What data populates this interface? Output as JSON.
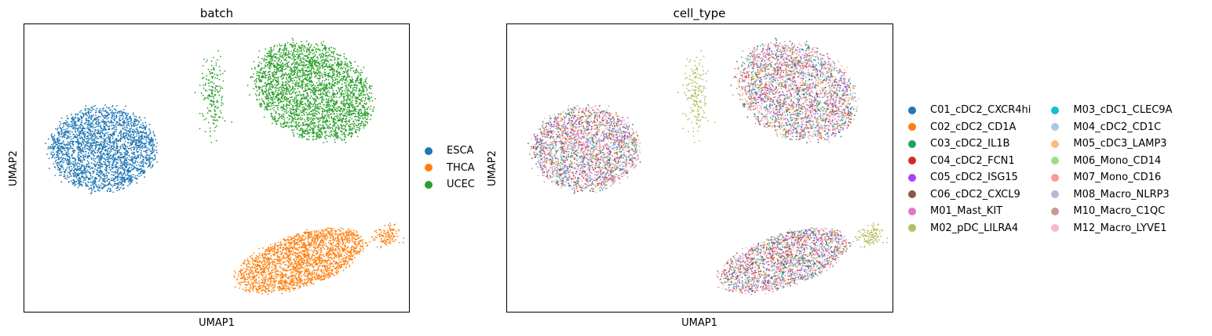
{
  "chart_data": [
    {
      "type": "scatter",
      "title": "batch",
      "xlabel": "UMAP1",
      "ylabel": "UMAP2",
      "grid": false,
      "legend_placement": "right",
      "categories": [
        "ESCA",
        "THCA",
        "UCEC"
      ],
      "colors": [
        "#1f77b4",
        "#ff7f0e",
        "#2ca02c"
      ],
      "clusters": [
        {
          "name": "ESCA",
          "center": [
            -7.5,
            1.2
          ],
          "spread": [
            3.0,
            2.6
          ],
          "n": 2600
        },
        {
          "name": "THCA",
          "center": [
            3.8,
            -5.8
          ],
          "spread": [
            3.8,
            1.6
          ],
          "n": 2200
        },
        {
          "name": "UCEC",
          "center": [
            4.5,
            4.8
          ],
          "spread": [
            3.6,
            2.8
          ],
          "n": 3000
        }
      ],
      "xlim": [
        -12,
        10
      ],
      "ylim": [
        -9,
        9
      ]
    },
    {
      "type": "scatter",
      "title": "cell_type",
      "xlabel": "UMAP1",
      "ylabel": "UMAP2",
      "grid": false,
      "legend_placement": "right",
      "categories": [
        "C01_cDC2_CXCR4hi",
        "C02_cDC2_CD1A",
        "C03_cDC2_IL1B",
        "C04_cDC2_FCN1",
        "C05_cDC2_ISG15",
        "C06_cDC2_CXCL9",
        "M01_Mast_KIT",
        "M02_pDC_LILRA4",
        "M03_cDC1_CLEC9A",
        "M04_cDC2_CD1C",
        "M05_cDC3_LAMP3",
        "M06_Mono_CD14",
        "M07_Mono_CD16",
        "M08_Macro_NLRP3",
        "M10_Macro_C1QC",
        "M12_Macro_LYVE1"
      ],
      "colors": [
        "#1f77b4",
        "#ff7f0e",
        "#279e68",
        "#d62728",
        "#aa40fc",
        "#8c564b",
        "#e377c2",
        "#b5bd61",
        "#17becf",
        "#aec7e8",
        "#ffbb78",
        "#98df8a",
        "#ff9896",
        "#c5b0d5",
        "#c49c94",
        "#f7b6d2"
      ],
      "xlim": [
        -12,
        10
      ],
      "ylim": [
        -9,
        9
      ]
    }
  ]
}
